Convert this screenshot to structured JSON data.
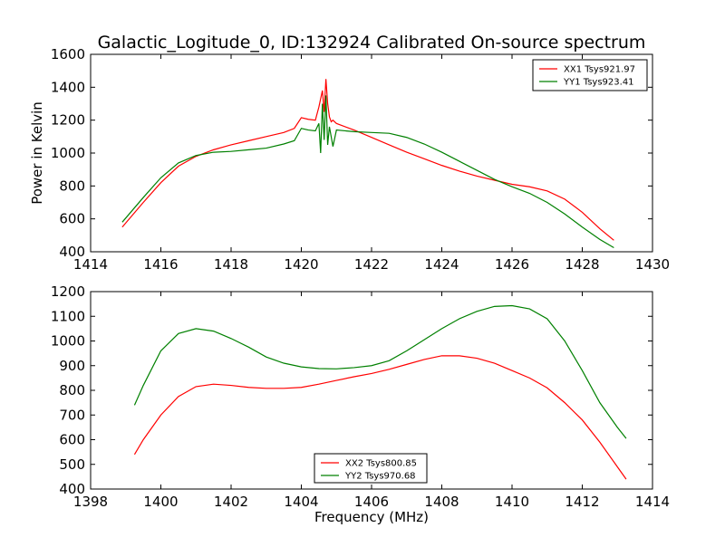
{
  "figure": {
    "title": "Galactic_Logitude_0, ID:132924 Calibrated On-source spectrum"
  },
  "chart_data": [
    {
      "type": "line",
      "title": "Galactic_Logitude_0, ID:132924 Calibrated On-source spectrum",
      "xlabel": "",
      "ylabel": "Power in Kelvin",
      "xlim": [
        1414,
        1430
      ],
      "ylim": [
        400,
        1600
      ],
      "xticks": [
        1414,
        1416,
        1418,
        1420,
        1422,
        1424,
        1426,
        1428,
        1430
      ],
      "yticks": [
        400,
        600,
        800,
        1000,
        1200,
        1400,
        1600
      ],
      "grid": false,
      "legend_position": "top-right",
      "series": [
        {
          "name": "XX1 Tsys921.97",
          "color": "#ff0000",
          "x": [
            1414.9,
            1415.5,
            1416.0,
            1416.5,
            1417.0,
            1417.5,
            1418.0,
            1418.5,
            1419.0,
            1419.5,
            1419.8,
            1420.0,
            1420.2,
            1420.4,
            1420.5,
            1420.6,
            1420.65,
            1420.7,
            1420.75,
            1420.8,
            1420.85,
            1420.9,
            1421.0,
            1421.5,
            1422.0,
            1422.5,
            1423.0,
            1423.5,
            1424.0,
            1424.5,
            1425.0,
            1425.5,
            1426.0,
            1426.5,
            1427.0,
            1427.5,
            1428.0,
            1428.5,
            1428.9
          ],
          "y": [
            550,
            700,
            820,
            920,
            980,
            1020,
            1050,
            1075,
            1100,
            1125,
            1150,
            1215,
            1205,
            1200,
            1280,
            1380,
            1250,
            1450,
            1300,
            1220,
            1190,
            1200,
            1180,
            1140,
            1095,
            1050,
            1005,
            965,
            925,
            890,
            860,
            835,
            810,
            795,
            770,
            720,
            640,
            540,
            470
          ]
        },
        {
          "name": "YY1 Tsys923.41",
          "color": "#008000",
          "x": [
            1414.9,
            1415.5,
            1416.0,
            1416.5,
            1417.0,
            1417.5,
            1418.0,
            1418.5,
            1419.0,
            1419.5,
            1419.8,
            1420.0,
            1420.2,
            1420.4,
            1420.5,
            1420.55,
            1420.6,
            1420.65,
            1420.7,
            1420.75,
            1420.8,
            1420.9,
            1421.0,
            1421.5,
            1422.0,
            1422.5,
            1423.0,
            1423.5,
            1424.0,
            1424.5,
            1425.0,
            1425.5,
            1426.0,
            1426.5,
            1427.0,
            1427.5,
            1428.0,
            1428.5,
            1428.9
          ],
          "y": [
            580,
            730,
            850,
            940,
            985,
            1005,
            1010,
            1020,
            1030,
            1055,
            1075,
            1150,
            1140,
            1135,
            1180,
            1000,
            1300,
            1080,
            1350,
            1050,
            1160,
            1040,
            1140,
            1130,
            1125,
            1120,
            1095,
            1055,
            1005,
            950,
            895,
            840,
            795,
            755,
            700,
            630,
            550,
            475,
            425
          ]
        }
      ]
    },
    {
      "type": "line",
      "title": "",
      "xlabel": "Frequency (MHz)",
      "ylabel": "",
      "xlim": [
        1398,
        1414
      ],
      "ylim": [
        400,
        1200
      ],
      "xticks": [
        1398,
        1400,
        1402,
        1404,
        1406,
        1408,
        1410,
        1412,
        1414
      ],
      "yticks": [
        400,
        500,
        600,
        700,
        800,
        900,
        1000,
        1100,
        1200
      ],
      "grid": false,
      "legend_position": "bottom-center",
      "series": [
        {
          "name": "XX2 Tsys800.85",
          "color": "#ff0000",
          "x": [
            1399.25,
            1399.5,
            1400.0,
            1400.5,
            1401.0,
            1401.5,
            1402.0,
            1402.5,
            1403.0,
            1403.5,
            1404.0,
            1404.5,
            1405.0,
            1405.5,
            1406.0,
            1406.5,
            1407.0,
            1407.5,
            1408.0,
            1408.5,
            1409.0,
            1409.5,
            1410.0,
            1410.5,
            1411.0,
            1411.5,
            1412.0,
            1412.5,
            1413.0,
            1413.25
          ],
          "y": [
            540,
            600,
            700,
            775,
            815,
            825,
            820,
            812,
            808,
            808,
            812,
            825,
            840,
            855,
            868,
            885,
            905,
            925,
            940,
            940,
            930,
            910,
            880,
            850,
            810,
            750,
            680,
            590,
            490,
            440
          ]
        },
        {
          "name": "YY2 Tsys970.68",
          "color": "#008000",
          "x": [
            1399.25,
            1399.5,
            1400.0,
            1400.5,
            1401.0,
            1401.5,
            1402.0,
            1402.5,
            1403.0,
            1403.5,
            1404.0,
            1404.5,
            1405.0,
            1405.5,
            1406.0,
            1406.5,
            1407.0,
            1407.5,
            1408.0,
            1408.5,
            1409.0,
            1409.5,
            1410.0,
            1410.5,
            1411.0,
            1411.5,
            1412.0,
            1412.5,
            1413.0,
            1413.25
          ],
          "y": [
            740,
            820,
            960,
            1030,
            1050,
            1040,
            1010,
            975,
            935,
            910,
            895,
            888,
            887,
            892,
            900,
            920,
            960,
            1005,
            1050,
            1090,
            1120,
            1140,
            1143,
            1130,
            1090,
            1000,
            880,
            750,
            650,
            605
          ]
        }
      ]
    }
  ]
}
